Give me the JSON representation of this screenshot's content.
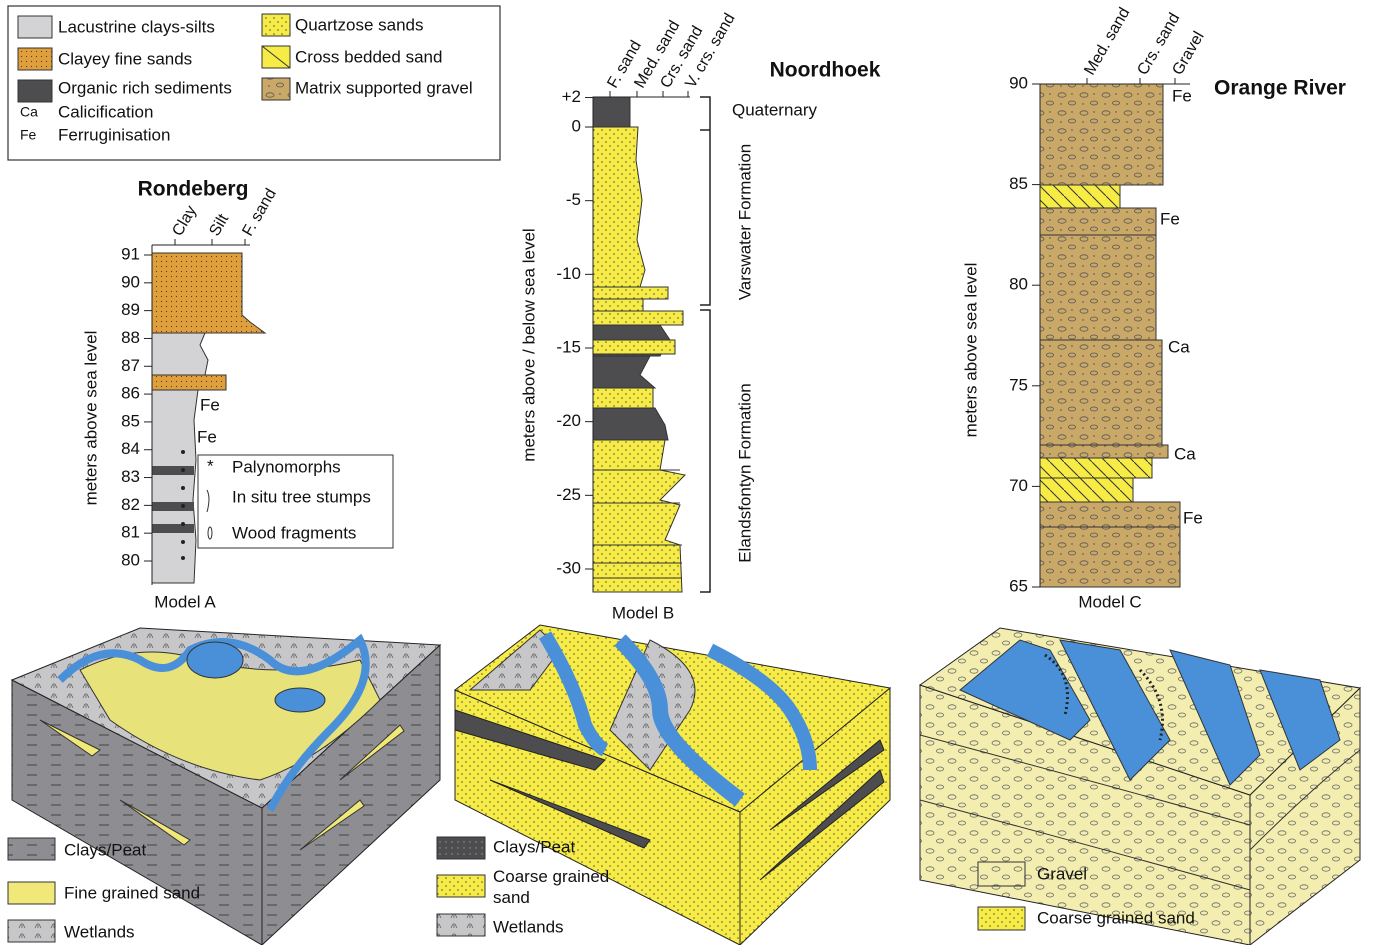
{
  "legend": {
    "items": [
      {
        "label": "Lacustrine clays-silts"
      },
      {
        "label": "Clayey fine sands"
      },
      {
        "label": "Organic rich sediments"
      },
      {
        "symbol": "Ca",
        "label": "Calicification"
      },
      {
        "symbol": "Fe",
        "label": "Ferruginisation"
      },
      {
        "label": "Quartzose sands"
      },
      {
        "label": "Cross bedded sand"
      },
      {
        "label": "Matrix supported gravel"
      }
    ]
  },
  "columns": [
    {
      "title": "Rondeberg",
      "y_axis_label": "meters above sea level",
      "grain_sizes": [
        "Clay",
        "Silt",
        "F. sand"
      ],
      "yticks": [
        80,
        81,
        82,
        83,
        84,
        85,
        86,
        87,
        88,
        89,
        90,
        91
      ],
      "annotations": [
        "Fe",
        "Fe"
      ],
      "inset_legend": [
        "Palynomorphs",
        "In situ tree stumps",
        "Wood fragments"
      ],
      "model": "Model A"
    },
    {
      "title": "Noordhoek",
      "y_axis_label": "meters above / below sea level",
      "grain_sizes": [
        "F. sand",
        "Med. sand",
        "Crs. sand",
        "V. crs. sand"
      ],
      "yticks": [
        {
          "value": 2,
          "label": "+2"
        },
        0,
        -5,
        -10,
        -15,
        -20,
        -25,
        -30
      ],
      "formations": [
        "Quaternary",
        "Varswater Formation",
        "Elandsfontyn Formation"
      ],
      "model": "Model B"
    },
    {
      "title": "Orange River",
      "y_axis_label": "meters above sea level",
      "grain_sizes": [
        "Med. sand",
        "Crs. sand",
        "Gravel"
      ],
      "yticks": [
        65,
        70,
        75,
        80,
        85,
        90
      ],
      "annotations": [
        "Fe",
        "Fe",
        "Ca",
        "Ca",
        "Fe"
      ],
      "model": "Model C"
    }
  ],
  "block_legends": [
    [
      "Clays/Peat",
      "Fine grained sand",
      "Wetlands"
    ],
    [
      "Clays/Peat",
      "Coarse grained sand",
      "Wetlands"
    ],
    [
      "Gravel",
      "Coarse grained sand"
    ]
  ]
}
